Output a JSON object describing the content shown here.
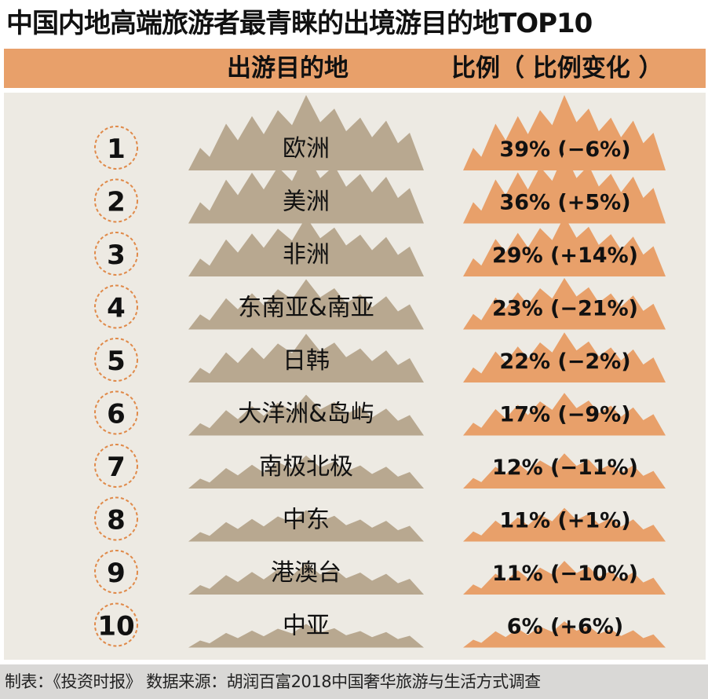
{
  "title": "中国内地高端旅游者最青睐的出境游目的地TOP10",
  "header": {
    "destination_label": "出游目的地",
    "ratio_label": "比例（ 比例变化 ）"
  },
  "footer": {
    "source": "制表：《投资时报》 数据来源：胡润百富2018中国奢华旅游与生活方式调查"
  },
  "colors": {
    "header_band": "#e8a06a",
    "panel": "#edeae3",
    "mountain_gray": "#b8a890",
    "mountain_orange": "#e8a06a",
    "circle_border": "#e08a4a",
    "footer": "#d9d8d6"
  },
  "chart_data": {
    "type": "table",
    "rows": [
      {
        "rank": "1",
        "destination": "欧洲",
        "share": 39,
        "change": -6,
        "label": "39% (−6%)"
      },
      {
        "rank": "2",
        "destination": "美洲",
        "share": 36,
        "change": 5,
        "label": "36% (+5%)"
      },
      {
        "rank": "3",
        "destination": "非洲",
        "share": 29,
        "change": 14,
        "label": "29% (+14%)"
      },
      {
        "rank": "4",
        "destination": "东南亚&南亚",
        "share": 23,
        "change": -21,
        "label": "23% (−21%)"
      },
      {
        "rank": "5",
        "destination": "日韩",
        "share": 22,
        "change": -2,
        "label": "22% (−2%)"
      },
      {
        "rank": "6",
        "destination": "大洋洲&岛屿",
        "share": 17,
        "change": -9,
        "label": "17% (−9%)"
      },
      {
        "rank": "7",
        "destination": "南极北极",
        "share": 12,
        "change": -11,
        "label": "12% (−11%)"
      },
      {
        "rank": "8",
        "destination": "中东",
        "share": 11,
        "change": 1,
        "label": "11% (+1%)"
      },
      {
        "rank": "9",
        "destination": "港澳台",
        "share": 11,
        "change": -10,
        "label": "11% (−10%)"
      },
      {
        "rank": "10",
        "destination": "中亚",
        "share": 6,
        "change": 6,
        "label": "6% (+6%)"
      }
    ]
  }
}
